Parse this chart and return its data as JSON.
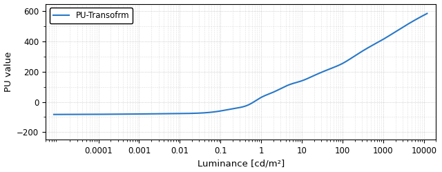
{
  "title": "",
  "xlabel": "Luminance [cd/m²]",
  "ylabel": "PU value",
  "legend_label": "PU-Transofrm",
  "line_color": "#2878c8",
  "xlim_low": 5e-06,
  "xlim_high": 20000,
  "ylim": [
    -250,
    650
  ],
  "yticks": [
    -200,
    0,
    200,
    400,
    600
  ],
  "xticks": [
    0.0001,
    0.001,
    0.01,
    0.1,
    1,
    10,
    100,
    1000,
    10000
  ],
  "xticklabels": [
    "0.0001",
    "0.001",
    "0.01",
    "0.1",
    "1",
    "10",
    "100",
    "1000",
    "10000"
  ],
  "background_color": "#ffffff",
  "linewidth": 1.5,
  "known_L": [
    1e-05,
    0.0001,
    0.001,
    0.01,
    0.1,
    0.2,
    0.5,
    1.0,
    2.0,
    5.0,
    10.0,
    20.0,
    50.0,
    100.0,
    200.0,
    500.0,
    1000.0,
    2000.0,
    5000.0,
    10000.0
  ],
  "known_PU": [
    -83,
    -82,
    -80,
    -77,
    -60,
    -45,
    -18,
    30,
    65,
    115,
    140,
    175,
    220,
    255,
    305,
    370,
    415,
    465,
    530,
    575
  ]
}
